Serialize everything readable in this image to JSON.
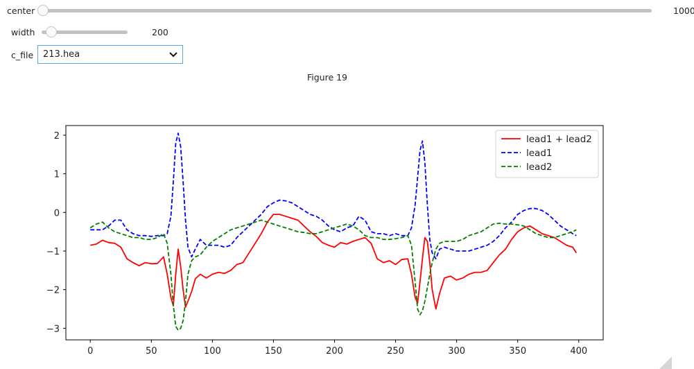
{
  "controls": {
    "center": {
      "label": "center",
      "value": "1000",
      "fraction": 0.0
    },
    "width": {
      "label": "width",
      "value": "200",
      "fraction": 0.1
    },
    "c_file": {
      "label": "c_file",
      "selected": "213.hea"
    }
  },
  "figure": {
    "title": "Figure 19"
  },
  "colors": {
    "sum": "#ff0000",
    "lead1": "#0000ff",
    "lead2": "#008000",
    "accent": "#5aa6d6"
  },
  "chart_data": {
    "type": "line",
    "title": "",
    "xlabel": "",
    "ylabel": "",
    "xlim": [
      -20,
      420
    ],
    "ylim": [
      -3.3,
      2.25
    ],
    "xticks": [
      0,
      50,
      100,
      150,
      200,
      250,
      300,
      350,
      400
    ],
    "yticks": [
      -3,
      -2,
      -1,
      0,
      1,
      2
    ],
    "xtick_labels": [
      "0",
      "50",
      "100",
      "150",
      "200",
      "250",
      "300",
      "350",
      "400"
    ],
    "ytick_labels": [
      "−3",
      "−2",
      "−1",
      "0",
      "1",
      "2"
    ],
    "legend_position": "top-right",
    "x": [
      0,
      5,
      10,
      15,
      20,
      25,
      30,
      35,
      40,
      45,
      50,
      55,
      60,
      63,
      66,
      68,
      70,
      72,
      74,
      76,
      78,
      80,
      83,
      86,
      90,
      95,
      100,
      105,
      110,
      115,
      120,
      125,
      130,
      135,
      140,
      145,
      150,
      155,
      160,
      165,
      170,
      175,
      180,
      185,
      190,
      195,
      200,
      205,
      210,
      215,
      220,
      225,
      230,
      235,
      240,
      245,
      250,
      255,
      260,
      263,
      266,
      268,
      270,
      272,
      274,
      276,
      278,
      280,
      283,
      286,
      290,
      295,
      300,
      305,
      310,
      315,
      320,
      325,
      330,
      335,
      340,
      345,
      350,
      355,
      360,
      365,
      370,
      375,
      380,
      385,
      390,
      395,
      398
    ],
    "series": [
      {
        "name": "lead1 + lead2",
        "style": "solid",
        "color": "#ff0000",
        "values": [
          -0.85,
          -0.82,
          -0.72,
          -0.78,
          -0.8,
          -0.9,
          -1.2,
          -1.3,
          -1.38,
          -1.3,
          -1.33,
          -1.32,
          -1.15,
          -1.6,
          -2.2,
          -2.42,
          -1.6,
          -0.95,
          -1.4,
          -2.0,
          -2.45,
          -2.3,
          -2.05,
          -1.72,
          -1.6,
          -1.7,
          -1.6,
          -1.55,
          -1.58,
          -1.5,
          -1.35,
          -1.3,
          -1.05,
          -0.8,
          -0.55,
          -0.25,
          -0.05,
          -0.05,
          -0.1,
          -0.15,
          -0.2,
          -0.35,
          -0.5,
          -0.62,
          -0.78,
          -0.85,
          -0.9,
          -0.78,
          -0.82,
          -0.75,
          -0.7,
          -0.65,
          -0.8,
          -1.2,
          -1.3,
          -1.25,
          -1.35,
          -1.22,
          -1.2,
          -1.6,
          -2.2,
          -2.35,
          -1.8,
          -1.2,
          -0.65,
          -0.75,
          -1.3,
          -2.0,
          -2.5,
          -2.1,
          -1.7,
          -1.65,
          -1.75,
          -1.7,
          -1.6,
          -1.55,
          -1.55,
          -1.5,
          -1.3,
          -1.1,
          -0.95,
          -0.7,
          -0.5,
          -0.4,
          -0.35,
          -0.45,
          -0.55,
          -0.6,
          -0.65,
          -0.75,
          -0.85,
          -0.9,
          -1.05
        ]
      },
      {
        "name": "lead1",
        "style": "dashed",
        "color": "#0000ff",
        "values": [
          -0.45,
          -0.45,
          -0.45,
          -0.35,
          -0.2,
          -0.2,
          -0.45,
          -0.55,
          -0.6,
          -0.6,
          -0.62,
          -0.6,
          -0.6,
          -0.55,
          -0.1,
          0.8,
          1.8,
          2.05,
          1.7,
          0.8,
          -0.2,
          -0.9,
          -1.15,
          -0.95,
          -0.7,
          -0.85,
          -0.85,
          -0.85,
          -0.9,
          -0.85,
          -0.65,
          -0.5,
          -0.35,
          -0.2,
          -0.05,
          0.15,
          0.25,
          0.32,
          0.3,
          0.25,
          0.15,
          0.05,
          -0.05,
          -0.1,
          -0.2,
          -0.35,
          -0.45,
          -0.5,
          -0.4,
          -0.35,
          -0.1,
          -0.2,
          -0.5,
          -0.55,
          -0.55,
          -0.6,
          -0.55,
          -0.6,
          -0.6,
          -0.4,
          0.2,
          0.9,
          1.6,
          1.85,
          1.3,
          0.2,
          -0.7,
          -1.05,
          -1.2,
          -0.95,
          -0.9,
          -0.95,
          -1.0,
          -1.0,
          -1.0,
          -0.95,
          -0.9,
          -0.85,
          -0.75,
          -0.6,
          -0.4,
          -0.25,
          -0.05,
          0.05,
          0.1,
          0.1,
          0.05,
          -0.05,
          -0.2,
          -0.35,
          -0.45,
          -0.55,
          -0.6
        ]
      },
      {
        "name": "lead2",
        "style": "dashed",
        "color": "#008000",
        "values": [
          -0.4,
          -0.3,
          -0.25,
          -0.4,
          -0.5,
          -0.55,
          -0.6,
          -0.65,
          -0.65,
          -0.7,
          -0.7,
          -0.65,
          -0.55,
          -0.8,
          -1.6,
          -2.4,
          -2.95,
          -3.05,
          -3.0,
          -2.8,
          -2.3,
          -1.6,
          -1.25,
          -1.15,
          -1.1,
          -0.9,
          -0.75,
          -0.65,
          -0.55,
          -0.45,
          -0.4,
          -0.35,
          -0.3,
          -0.25,
          -0.2,
          -0.25,
          -0.3,
          -0.35,
          -0.4,
          -0.45,
          -0.5,
          -0.52,
          -0.55,
          -0.55,
          -0.5,
          -0.45,
          -0.4,
          -0.35,
          -0.3,
          -0.35,
          -0.45,
          -0.6,
          -0.65,
          -0.65,
          -0.7,
          -0.7,
          -0.68,
          -0.65,
          -0.6,
          -0.85,
          -1.8,
          -2.5,
          -2.65,
          -2.55,
          -2.3,
          -1.95,
          -1.6,
          -1.3,
          -0.95,
          -0.8,
          -0.75,
          -0.75,
          -0.75,
          -0.7,
          -0.6,
          -0.55,
          -0.5,
          -0.4,
          -0.3,
          -0.28,
          -0.3,
          -0.3,
          -0.32,
          -0.35,
          -0.45,
          -0.55,
          -0.6,
          -0.65,
          -0.65,
          -0.6,
          -0.55,
          -0.5,
          -0.45
        ]
      }
    ]
  }
}
